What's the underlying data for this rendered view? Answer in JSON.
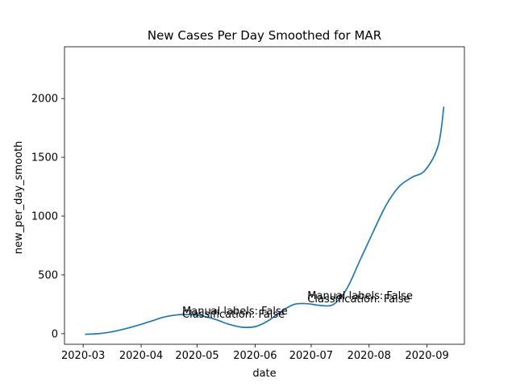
{
  "chart_data": {
    "type": "line",
    "title": "New Cases Per Day Smoothed for MAR",
    "xlabel": "date",
    "ylabel": "new_per_day_smooth",
    "x_ticks": [
      "2020-03",
      "2020-04",
      "2020-05",
      "2020-06",
      "2020-07",
      "2020-08",
      "2020-09"
    ],
    "y_ticks": [
      0,
      500,
      1000,
      1500,
      2000
    ],
    "xlim": [
      "2020-02-20",
      "2020-09-21"
    ],
    "ylim": [
      -90,
      2440
    ],
    "grid": false,
    "series": [
      {
        "color": "#1f77b4",
        "x": [
          "2020-03-02",
          "2020-03-09",
          "2020-03-16",
          "2020-03-23",
          "2020-03-30",
          "2020-04-06",
          "2020-04-13",
          "2020-04-20",
          "2020-04-27",
          "2020-05-04",
          "2020-05-11",
          "2020-05-18",
          "2020-05-25",
          "2020-06-01",
          "2020-06-08",
          "2020-06-15",
          "2020-06-22",
          "2020-06-29",
          "2020-07-06",
          "2020-07-13",
          "2020-07-20",
          "2020-07-27",
          "2020-08-03",
          "2020-08-10",
          "2020-08-17",
          "2020-08-24",
          "2020-08-31",
          "2020-09-07",
          "2020-09-10"
        ],
        "y": [
          -5,
          0,
          15,
          40,
          70,
          105,
          140,
          160,
          162,
          150,
          120,
          80,
          55,
          60,
          110,
          190,
          250,
          255,
          240,
          250,
          380,
          620,
          860,
          1090,
          1250,
          1330,
          1390,
          1600,
          1930
        ]
      }
    ],
    "annotations": [
      {
        "x": "2020-04-23",
        "y": 190,
        "lines": [
          "Manual labels: False",
          "Classification: False"
        ]
      },
      {
        "x": "2020-06-29",
        "y": 320,
        "lines": [
          "Manual labels: False",
          "Classification: False"
        ]
      }
    ]
  }
}
